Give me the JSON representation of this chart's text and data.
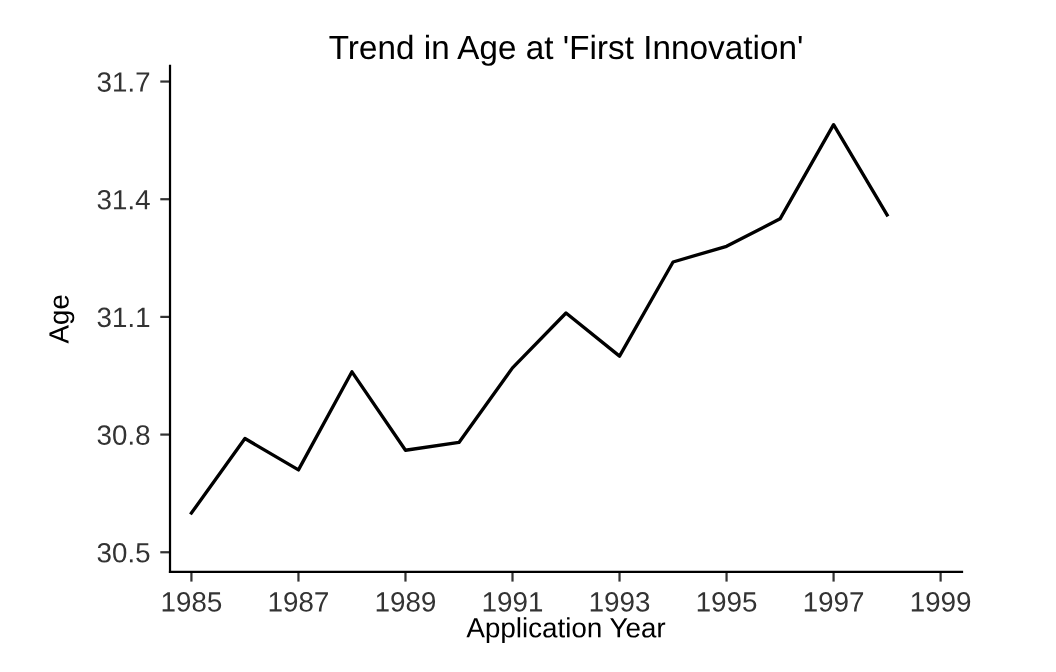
{
  "chart_data": {
    "type": "line",
    "title": "Trend in Age at 'First Innovation'",
    "xlabel": "Application Year",
    "ylabel": "Age",
    "x": [
      1985,
      1986,
      1987,
      1988,
      1989,
      1990,
      1991,
      1992,
      1993,
      1994,
      1995,
      1996,
      1997,
      1998
    ],
    "series": [
      {
        "color": "#000000",
        "values": [
          30.6,
          30.79,
          30.71,
          30.96,
          30.76,
          30.78,
          30.97,
          31.11,
          31.0,
          31.24,
          31.28,
          31.35,
          31.59,
          31.36
        ]
      }
    ],
    "xlim": [
      1984.6,
      1999.4
    ],
    "xticks": [
      1985,
      1987,
      1989,
      1991,
      1993,
      1995,
      1997,
      1999
    ],
    "ylim": [
      30.45,
      31.74
    ],
    "yticks": [
      30.5,
      30.8,
      31.1,
      31.4,
      31.7
    ],
    "grid": false,
    "legend": false,
    "marker": "none",
    "line_style": "solid"
  }
}
